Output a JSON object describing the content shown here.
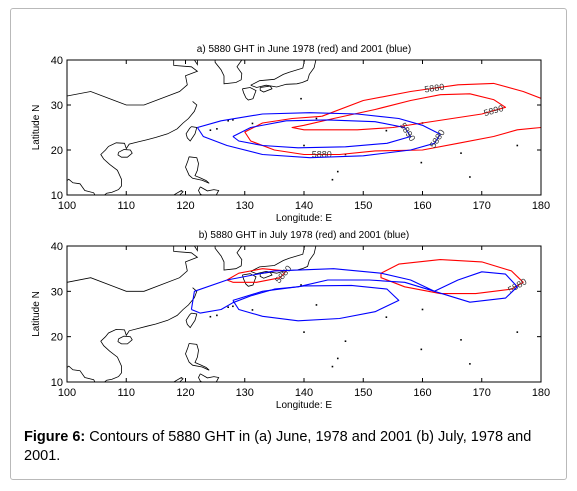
{
  "figure": {
    "caption_label": "Figure 6:",
    "caption_text": " Contours of 5880 GHT in (a) June, 1978 and 2001 (b) July, 1978 and 2001."
  },
  "colors": {
    "series_1978": "#ff0000",
    "series_2001": "#0000ff",
    "coast": "#000000"
  },
  "chart_data": [
    {
      "type": "line",
      "title": "a) 5880 GHT in June 1978 (red) and 2001 (blue)",
      "xlabel": "Longitude: E",
      "ylabel": "Latitude N",
      "xlim": [
        100,
        180
      ],
      "ylim": [
        10,
        40
      ],
      "xticks": [
        100,
        110,
        120,
        130,
        140,
        150,
        160,
        170,
        180
      ],
      "yticks": [
        10,
        20,
        30,
        40
      ],
      "grid": false,
      "series": [
        {
          "color": "#ff0000",
          "label": "5880",
          "points": [
            [
              143,
              27.5
            ],
            [
              150,
              31
            ],
            [
              158,
              33
            ],
            [
              166,
              34.5
            ],
            [
              172,
              34.8
            ],
            [
              177,
              33
            ],
            [
              180,
              31.5
            ]
          ]
        },
        {
          "color": "#ff0000",
          "label": "5880",
          "points": [
            [
              180,
              25
            ],
            [
              176,
              24.5
            ],
            [
              172,
              23
            ],
            [
              166,
              21.5
            ],
            [
              160,
              20
            ],
            [
              152,
              19.8
            ],
            [
              146,
              19
            ],
            [
              140,
              19
            ],
            [
              135,
              20
            ],
            [
              131,
              22
            ],
            [
              130,
              24
            ],
            [
              133,
              26
            ],
            [
              138,
              27
            ],
            [
              143,
              27.5
            ]
          ]
        },
        {
          "color": "#ff0000",
          "label": "5890",
          "points": [
            [
              140,
              25.5
            ],
            [
              145,
              27
            ],
            [
              152,
              29
            ],
            [
              158,
              31
            ],
            [
              163,
              32.3
            ],
            [
              168,
              32.5
            ],
            [
              172,
              31.2
            ],
            [
              174,
              29.5
            ],
            [
              170,
              28
            ],
            [
              165,
              27
            ],
            [
              160,
              26
            ],
            [
              155,
              25
            ],
            [
              149,
              24.5
            ],
            [
              144,
              24.5
            ],
            [
              140,
              24.5
            ],
            [
              138,
              25
            ],
            [
              140,
              25.5
            ]
          ]
        },
        {
          "color": "#0000ff",
          "label": "5880",
          "points": [
            [
              122,
              25
            ],
            [
              126,
              26.5
            ],
            [
              133,
              28
            ],
            [
              141,
              28.3
            ],
            [
              149,
              28
            ],
            [
              156,
              27
            ],
            [
              160,
              25.5
            ],
            [
              163,
              23.5
            ],
            [
              162,
              21.5
            ],
            [
              158,
              20
            ],
            [
              150,
              18.7
            ],
            [
              141,
              18.3
            ],
            [
              133,
              19
            ],
            [
              127,
              21
            ],
            [
              123,
              23
            ],
            [
              122,
              25
            ]
          ]
        },
        {
          "color": "#0000ff",
          "label": "5890",
          "points": [
            [
              128,
              23
            ],
            [
              131,
              25
            ],
            [
              137,
              26.5
            ],
            [
              144,
              26.7
            ],
            [
              152,
              26.3
            ],
            [
              157,
              25
            ],
            [
              158,
              23
            ],
            [
              154,
              21.5
            ],
            [
              147,
              20.7
            ],
            [
              139,
              20.5
            ],
            [
              133,
              21
            ],
            [
              129,
              22
            ],
            [
              128,
              23
            ]
          ]
        }
      ]
    },
    {
      "type": "line",
      "title": "b) 5880 GHT in July 1978 (red) and 2001 (blue)",
      "xlabel": "Longitude: E",
      "ylabel": "Latitude N",
      "xlim": [
        100,
        180
      ],
      "ylim": [
        10,
        40
      ],
      "xticks": [
        100,
        110,
        120,
        130,
        140,
        150,
        160,
        170,
        180
      ],
      "yticks": [
        10,
        20,
        30,
        40
      ],
      "grid": false,
      "series": [
        {
          "color": "#ff0000",
          "label": "5880",
          "points": [
            [
              153,
              34
            ],
            [
              156,
              36
            ],
            [
              163,
              37
            ],
            [
              170,
              36.5
            ],
            [
              175,
              34.5
            ],
            [
              177,
              32
            ],
            [
              175,
              30.5
            ],
            [
              169,
              29.5
            ],
            [
              163,
              29.5
            ],
            [
              157,
              31
            ],
            [
              153,
              33
            ],
            [
              153,
              34
            ]
          ]
        },
        {
          "color": "#ff0000",
          "label": "5880",
          "points": [
            [
              127,
              32.5
            ],
            [
              129,
              34
            ],
            [
              133,
              35
            ],
            [
              137,
              34.5
            ],
            [
              136,
              33
            ],
            [
              132,
              32
            ],
            [
              128,
              32
            ],
            [
              127,
              32.5
            ]
          ]
        },
        {
          "color": "#0000ff",
          "label": "",
          "points": [
            [
              121,
              26
            ],
            [
              121.5,
              30
            ],
            [
              127,
              32.5
            ],
            [
              135,
              34.5
            ],
            [
              145,
              35
            ],
            [
              153,
              34
            ],
            [
              158,
              32.5
            ],
            [
              162,
              30
            ],
            [
              166,
              32.5
            ],
            [
              170,
              34.3
            ],
            [
              174,
              33.8
            ],
            [
              176,
              31
            ],
            [
              174,
              28.5
            ],
            [
              168,
              27.6
            ],
            [
              162,
              30
            ],
            [
              157,
              32
            ],
            [
              151,
              32.5
            ],
            [
              144,
              32.5
            ],
            [
              139,
              31
            ],
            [
              135,
              30.5
            ],
            [
              131,
              29
            ],
            [
              128,
              27.5
            ],
            [
              126,
              26
            ],
            [
              122.5,
              25.2
            ],
            [
              121,
              26
            ]
          ]
        },
        {
          "color": "#0000ff",
          "label": "",
          "points": [
            [
              128,
              28
            ],
            [
              133,
              30
            ],
            [
              140,
              31.2
            ],
            [
              148,
              31.3
            ],
            [
              154,
              30.5
            ],
            [
              156,
              28
            ],
            [
              152,
              25.5
            ],
            [
              146,
              24
            ],
            [
              139,
              23.5
            ],
            [
              133,
              24.5
            ],
            [
              129,
              26
            ],
            [
              128,
              28
            ]
          ]
        }
      ]
    }
  ]
}
